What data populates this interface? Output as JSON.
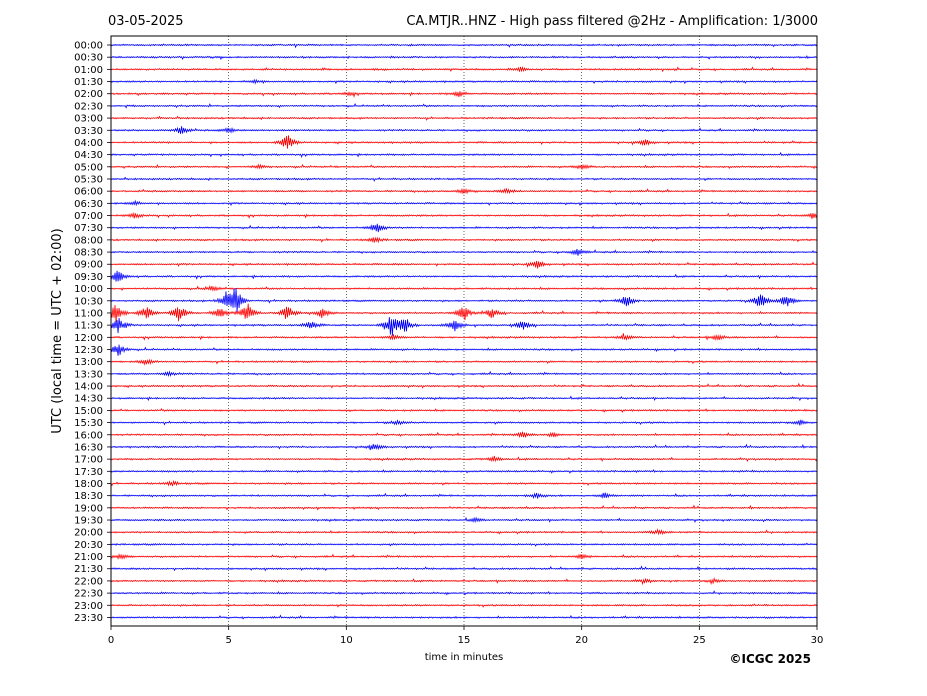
{
  "header": {
    "date": "03-05-2025",
    "title": "CA.MTJR..HNZ - High pass filtered @2Hz - Amplification: 1/3000"
  },
  "footer": {
    "copyright": "©ICGC 2025"
  },
  "colors": {
    "red_trace": "#ff0000",
    "blue_trace": "#0000ff",
    "frame": "#000000",
    "background": "#ffffff"
  },
  "chart_data": {
    "type": "line",
    "title": "CA.MTJR..HNZ - High pass filtered @2Hz - Amplification: 1/3000",
    "xlabel": "time in minutes",
    "ylabel": "UTC (local time = UTC + 02:00)",
    "xlim": [
      0,
      30
    ],
    "x_ticks": [
      "0",
      "5",
      "10",
      "15",
      "20",
      "25",
      "30"
    ],
    "x_tick_values": [
      0,
      5,
      10,
      15,
      20,
      25,
      30
    ],
    "grid": "vertical dotted lines at every 5 minutes",
    "row_labels": [
      "00:00",
      "00:30",
      "01:00",
      "01:30",
      "02:00",
      "02:30",
      "03:00",
      "03:30",
      "04:00",
      "04:30",
      "05:00",
      "05:30",
      "06:00",
      "06:30",
      "07:00",
      "07:30",
      "08:00",
      "08:30",
      "09:00",
      "09:30",
      "10:00",
      "10:30",
      "11:00",
      "11:30",
      "12:00",
      "12:30",
      "13:00",
      "13:30",
      "14:00",
      "14:30",
      "15:00",
      "15:30",
      "16:00",
      "16:30",
      "17:00",
      "17:30",
      "18:00",
      "18:30",
      "19:00",
      "19:30",
      "20:00",
      "20:30",
      "21:00",
      "21:30",
      "22:00",
      "22:30",
      "23:00",
      "23:30"
    ],
    "row_colors": [
      "blue",
      "blue",
      "red",
      "blue",
      "red",
      "blue",
      "red",
      "blue",
      "red",
      "blue",
      "red",
      "blue",
      "red",
      "blue",
      "red",
      "blue",
      "red",
      "blue",
      "red",
      "blue",
      "red",
      "blue",
      "red",
      "blue",
      "red",
      "blue",
      "red",
      "blue",
      "red",
      "blue",
      "red",
      "blue",
      "red",
      "blue",
      "red",
      "blue",
      "red",
      "blue",
      "red",
      "blue",
      "red",
      "blue",
      "red",
      "blue",
      "red",
      "blue",
      "red",
      "blue"
    ],
    "events": [
      {
        "row": "01:00",
        "minute": 17.4,
        "amplitude": 0.25
      },
      {
        "row": "01:30",
        "minute": 6.1,
        "amplitude": 0.2
      },
      {
        "row": "02:00",
        "minute": 10.1,
        "amplitude": 0.2
      },
      {
        "row": "02:00",
        "minute": 14.8,
        "amplitude": 0.35
      },
      {
        "row": "03:30",
        "minute": 3.0,
        "amplitude": 0.5
      },
      {
        "row": "03:30",
        "minute": 5.0,
        "amplitude": 0.3
      },
      {
        "row": "04:00",
        "minute": 7.5,
        "amplitude": 0.9
      },
      {
        "row": "04:00",
        "minute": 22.7,
        "amplitude": 0.35
      },
      {
        "row": "05:00",
        "minute": 6.3,
        "amplitude": 0.2
      },
      {
        "row": "05:00",
        "minute": 20.0,
        "amplitude": 0.3
      },
      {
        "row": "06:00",
        "minute": 15.0,
        "amplitude": 0.3
      },
      {
        "row": "06:00",
        "minute": 16.8,
        "amplitude": 0.3
      },
      {
        "row": "06:30",
        "minute": 1.0,
        "amplitude": 0.25
      },
      {
        "row": "07:00",
        "minute": 1.0,
        "amplitude": 0.3
      },
      {
        "row": "07:00",
        "minute": 29.9,
        "amplitude": 0.35
      },
      {
        "row": "07:30",
        "minute": 11.3,
        "amplitude": 0.6
      },
      {
        "row": "08:00",
        "minute": 11.2,
        "amplitude": 0.3
      },
      {
        "row": "08:30",
        "minute": 19.8,
        "amplitude": 0.4
      },
      {
        "row": "09:00",
        "minute": 18.1,
        "amplitude": 0.5
      },
      {
        "row": "09:30",
        "minute": 0.3,
        "amplitude": 0.8
      },
      {
        "row": "10:00",
        "minute": 4.3,
        "amplitude": 0.3
      },
      {
        "row": "10:30",
        "minute": 4.9,
        "amplitude": 0.9
      },
      {
        "row": "10:30",
        "minute": 5.3,
        "amplitude": 1.6
      },
      {
        "row": "10:30",
        "minute": 21.9,
        "amplitude": 0.7
      },
      {
        "row": "10:30",
        "minute": 27.6,
        "amplitude": 0.9
      },
      {
        "row": "10:30",
        "minute": 28.7,
        "amplitude": 0.8
      },
      {
        "row": "11:00",
        "minute": 0.2,
        "amplitude": 1.2
      },
      {
        "row": "11:00",
        "minute": 1.5,
        "amplitude": 0.8
      },
      {
        "row": "11:00",
        "minute": 2.9,
        "amplitude": 1.0
      },
      {
        "row": "11:00",
        "minute": 4.6,
        "amplitude": 0.7
      },
      {
        "row": "11:00",
        "minute": 5.8,
        "amplitude": 1.1
      },
      {
        "row": "11:00",
        "minute": 7.5,
        "amplitude": 0.9
      },
      {
        "row": "11:00",
        "minute": 9.0,
        "amplitude": 0.6
      },
      {
        "row": "11:00",
        "minute": 15.0,
        "amplitude": 0.9
      },
      {
        "row": "11:00",
        "minute": 16.2,
        "amplitude": 0.6
      },
      {
        "row": "11:30",
        "minute": 0.3,
        "amplitude": 1.0
      },
      {
        "row": "11:30",
        "minute": 8.5,
        "amplitude": 0.5
      },
      {
        "row": "11:30",
        "minute": 11.9,
        "amplitude": 1.4
      },
      {
        "row": "11:30",
        "minute": 12.5,
        "amplitude": 0.9
      },
      {
        "row": "11:30",
        "minute": 14.6,
        "amplitude": 0.7
      },
      {
        "row": "11:30",
        "minute": 17.5,
        "amplitude": 0.5
      },
      {
        "row": "12:00",
        "minute": 12.0,
        "amplitude": 0.35
      },
      {
        "row": "12:00",
        "minute": 21.8,
        "amplitude": 0.3
      },
      {
        "row": "12:00",
        "minute": 25.8,
        "amplitude": 0.35
      },
      {
        "row": "12:30",
        "minute": 0.3,
        "amplitude": 0.8
      },
      {
        "row": "13:00",
        "minute": 1.5,
        "amplitude": 0.3
      },
      {
        "row": "13:30",
        "minute": 2.4,
        "amplitude": 0.25
      },
      {
        "row": "15:30",
        "minute": 12.2,
        "amplitude": 0.25
      },
      {
        "row": "15:30",
        "minute": 29.3,
        "amplitude": 0.3
      },
      {
        "row": "16:00",
        "minute": 17.5,
        "amplitude": 0.35
      },
      {
        "row": "16:00",
        "minute": 18.8,
        "amplitude": 0.3
      },
      {
        "row": "16:30",
        "minute": 11.2,
        "amplitude": 0.4
      },
      {
        "row": "17:00",
        "minute": 16.3,
        "amplitude": 0.3
      },
      {
        "row": "18:00",
        "minute": 2.6,
        "amplitude": 0.25
      },
      {
        "row": "18:30",
        "minute": 18.1,
        "amplitude": 0.35
      },
      {
        "row": "18:30",
        "minute": 21.0,
        "amplitude": 0.3
      },
      {
        "row": "19:30",
        "minute": 15.5,
        "amplitude": 0.2
      },
      {
        "row": "20:00",
        "minute": 23.3,
        "amplitude": 0.3
      },
      {
        "row": "21:00",
        "minute": 0.4,
        "amplitude": 0.3
      },
      {
        "row": "21:00",
        "minute": 20.0,
        "amplitude": 0.25
      },
      {
        "row": "22:00",
        "minute": 22.7,
        "amplitude": 0.2
      },
      {
        "row": "22:00",
        "minute": 25.6,
        "amplitude": 0.2
      }
    ]
  }
}
